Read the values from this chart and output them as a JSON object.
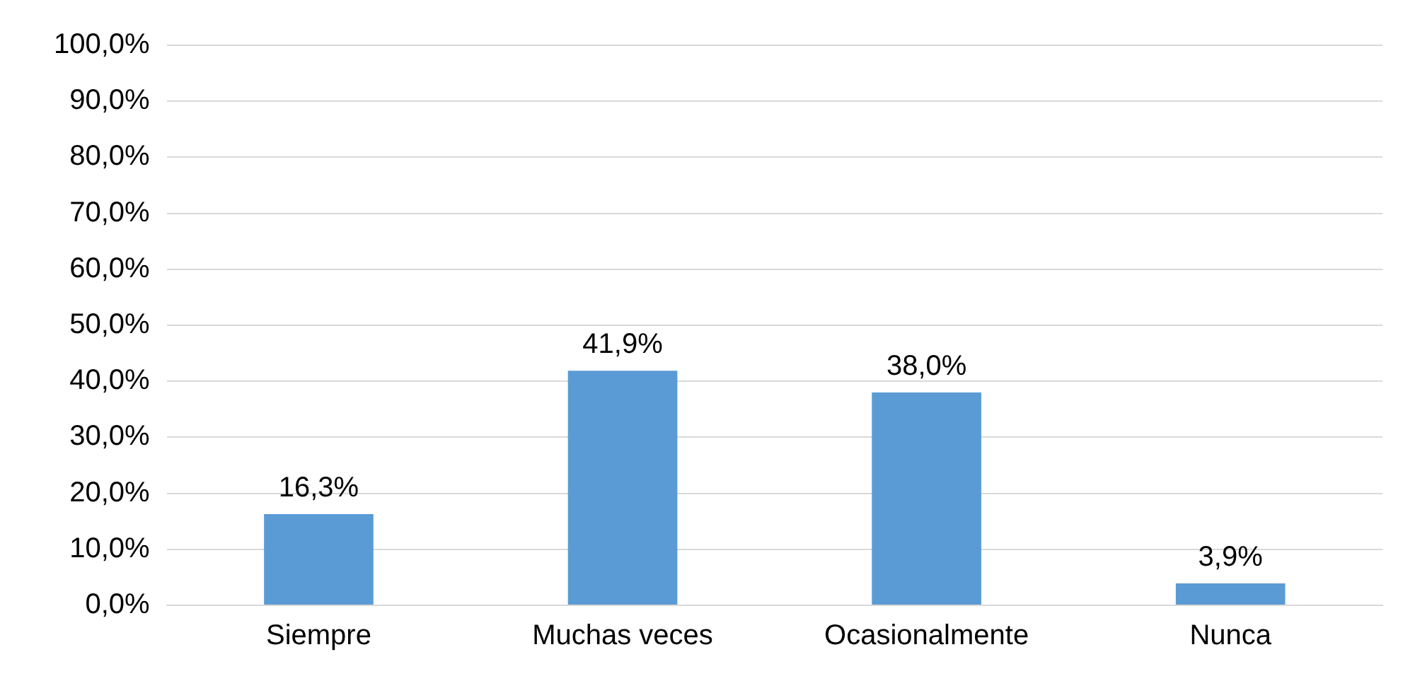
{
  "chart_data": {
    "type": "bar",
    "categories": [
      "Siempre",
      "Muchas veces",
      "Ocasionalmente",
      "Nunca"
    ],
    "values": [
      16.3,
      41.9,
      38.0,
      3.9
    ],
    "value_labels": [
      "16,3%",
      "41,9%",
      "38,0%",
      "3,9%"
    ],
    "color": "#5b9bd5",
    "ylim": [
      0,
      100
    ],
    "yticks": [
      {
        "value": 0,
        "label": "0,0%"
      },
      {
        "value": 10,
        "label": "10,0%"
      },
      {
        "value": 20,
        "label": "20,0%"
      },
      {
        "value": 30,
        "label": "30,0%"
      },
      {
        "value": 40,
        "label": "40,0%"
      },
      {
        "value": 50,
        "label": "50,0%"
      },
      {
        "value": 60,
        "label": "60,0%"
      },
      {
        "value": 70,
        "label": "70,0%"
      },
      {
        "value": 80,
        "label": "80,0%"
      },
      {
        "value": 90,
        "label": "90,0%"
      },
      {
        "value": 100,
        "label": "100,0%"
      }
    ],
    "grid": "y",
    "legend": false
  }
}
